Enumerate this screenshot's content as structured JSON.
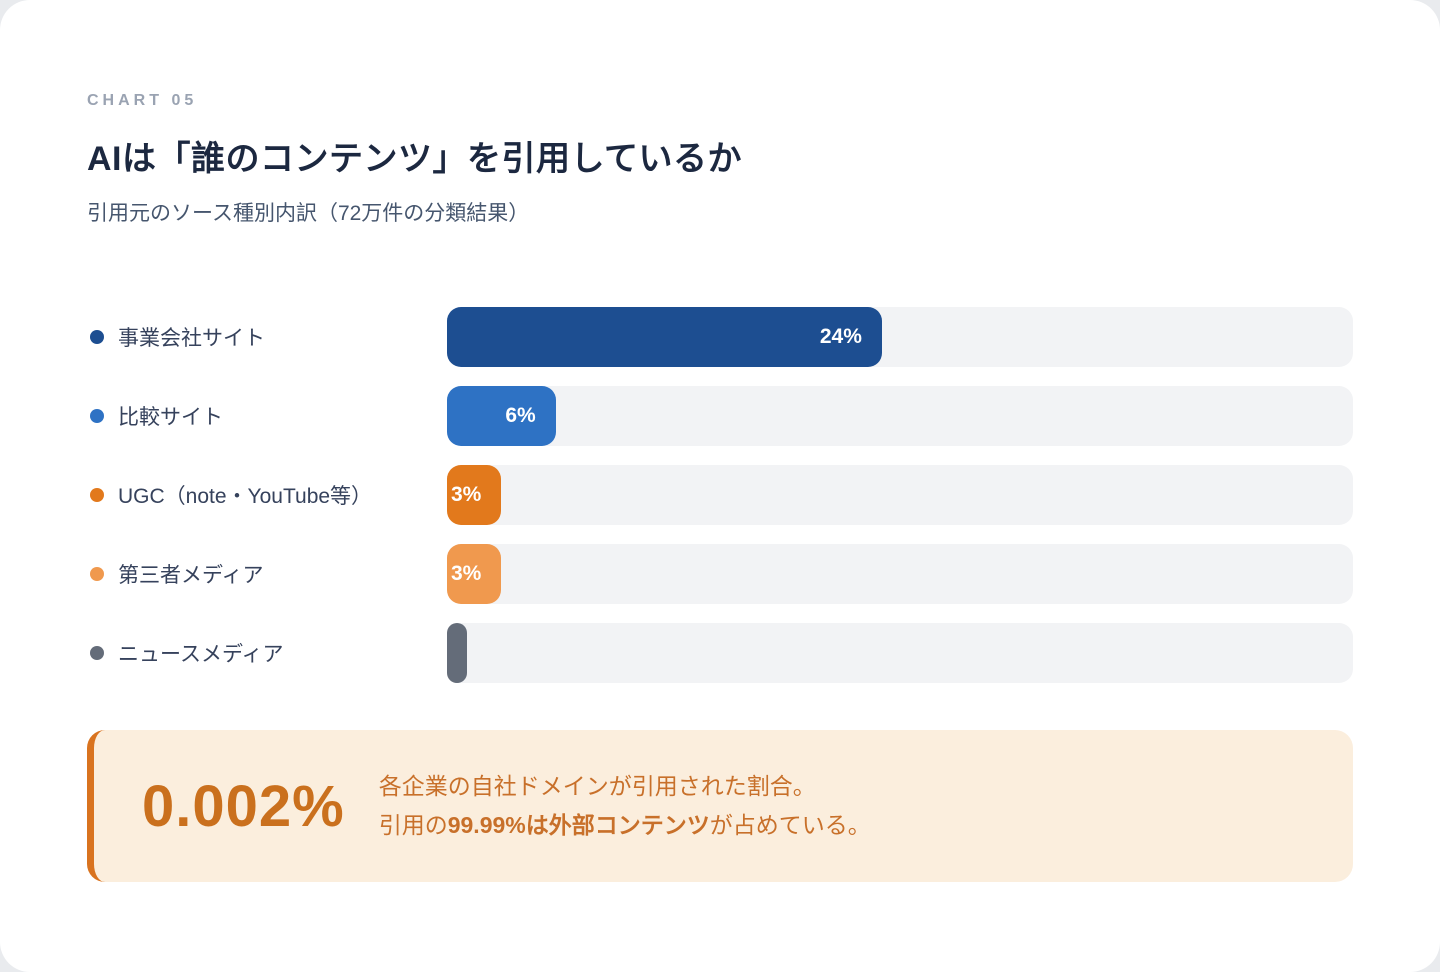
{
  "header": {
    "eyebrow": "CHART 05",
    "title": "AIは「誰のコンテンツ」を引用しているか",
    "subtitle": "引用元のソース種別内訳（72万件の分類結果）"
  },
  "chart_data": {
    "type": "bar",
    "orientation": "horizontal",
    "title": "AIは「誰のコンテンツ」を引用しているか",
    "subtitle": "引用元のソース種別内訳（72万件の分類結果）",
    "categories": [
      "事業会社サイト",
      "比較サイト",
      "UGC（note・YouTube等）",
      "第三者メディア",
      "ニュースメディア"
    ],
    "values": [
      24,
      6,
      3,
      3,
      1
    ],
    "value_suffix": "%",
    "xlabel": "",
    "ylabel": "",
    "xlim": [
      0,
      50
    ],
    "grid": false,
    "legend_position": "none",
    "bar_colors": [
      "#1d4e91",
      "#2e72c4",
      "#e2791c",
      "#f0994e",
      "#646c79"
    ],
    "track_color": "#f2f3f5"
  },
  "callout": {
    "stat": "0.002%",
    "line1": "各企業の自社ドメインが引用された割合。",
    "line2_segments": [
      {
        "text": "引用の",
        "bold": false
      },
      {
        "text": "99.99%は外部コンテンツ",
        "bold": true
      },
      {
        "text": "が占めている。",
        "bold": false
      }
    ],
    "accent_color": "#d9731f",
    "stat_color": "#ca701d",
    "text_color": "#c8702a",
    "background_color": "#fbeedd"
  }
}
